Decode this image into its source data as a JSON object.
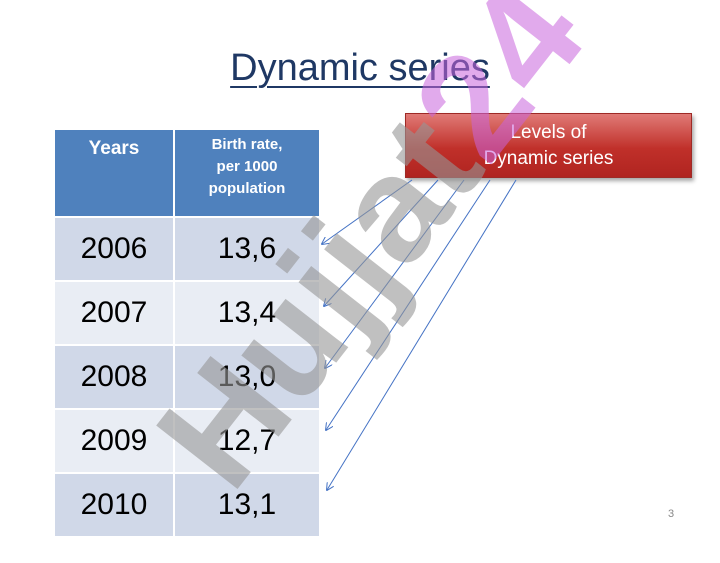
{
  "title": "Dynamic series",
  "table": {
    "headers": [
      "Years",
      "Birth rate, per 1000 population"
    ],
    "header_col2_lines": [
      "Birth rate,",
      "per 1000",
      "population"
    ],
    "rows": [
      {
        "year": "2006",
        "rate": "13,6"
      },
      {
        "year": "2007",
        "rate": "13,4"
      },
      {
        "year": "2008",
        "rate": "13,0"
      },
      {
        "year": "2009",
        "rate": "12,7"
      },
      {
        "year": "2010",
        "rate": "13,1"
      }
    ]
  },
  "callout": {
    "line1": "Levels of",
    "line2": "Dynamic series",
    "color": "#c0302a"
  },
  "watermark": {
    "text_gray": "Hujjat",
    "text_accent": "24"
  },
  "page_number": "3",
  "colors": {
    "title": "#1f3864",
    "header_bg": "#4f81bd",
    "row_odd": "#d0d8e8",
    "row_even": "#e9edf4",
    "arrow": "#4472c4"
  }
}
